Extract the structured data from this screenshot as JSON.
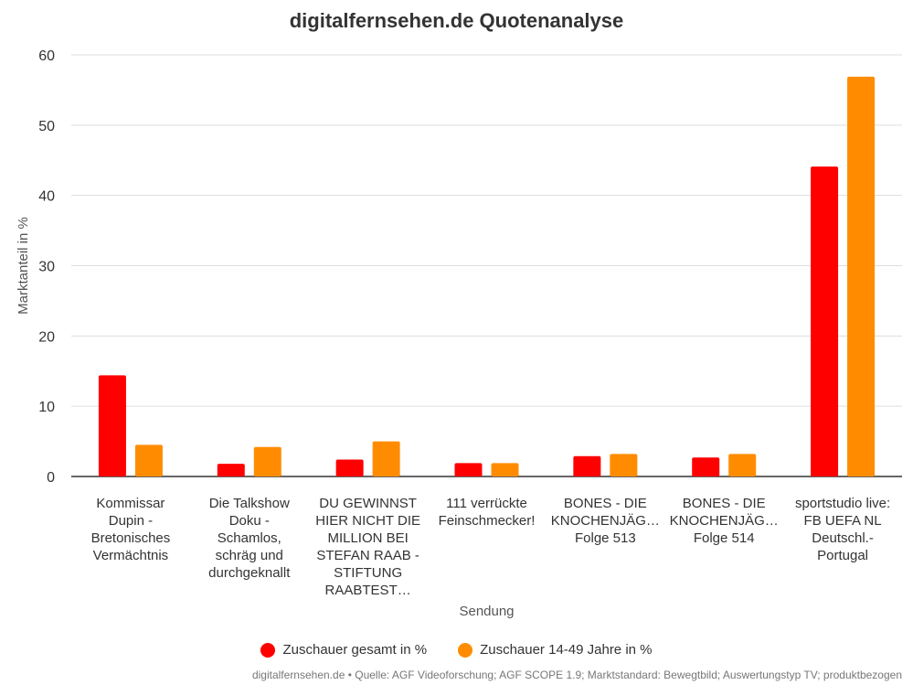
{
  "chart_data": {
    "type": "bar",
    "title": "digitalfernsehen.de Quotenanalyse",
    "xlabel": "Sendung",
    "ylabel": "Marktanteil in %",
    "ylim": [
      0,
      60
    ],
    "yticks": [
      0,
      10,
      20,
      30,
      40,
      50,
      60
    ],
    "grid": true,
    "legend_position": "bottom",
    "categories": [
      [
        "Kommissar",
        "Dupin -",
        "Bretonisches",
        "Vermächtnis"
      ],
      [
        "Die Talkshow",
        "Doku -",
        "Schamlos,",
        "schräg und",
        "durchgeknallt"
      ],
      [
        "DU GEWINNST",
        "HIER NICHT DIE",
        "MILLION BEI",
        "STEFAN RAAB -",
        "STIFTUNG",
        "RAABTEST…"
      ],
      [
        "111 verrückte",
        "Feinschmecker!"
      ],
      [
        "BONES - DIE",
        "KNOCHENJÄG…",
        "Folge 513"
      ],
      [
        "BONES - DIE",
        "KNOCHENJÄG…",
        "Folge 514"
      ],
      [
        "sportstudio live:",
        "FB UEFA NL",
        "Deutschl.-",
        "Portugal"
      ]
    ],
    "series": [
      {
        "name": "Zuschauer gesamt in %",
        "color": "#ff0000",
        "values": [
          14.4,
          1.8,
          2.4,
          1.9,
          2.9,
          2.7,
          44.1
        ]
      },
      {
        "name": "Zuschauer 14-49 Jahre in %",
        "color": "#ff8c00",
        "values": [
          4.5,
          4.2,
          5.0,
          1.9,
          3.2,
          3.2,
          56.9
        ]
      }
    ]
  },
  "source_note": "digitalfernsehen.de • Quelle: AGF Videoforschung; AGF SCOPE 1.9; Marktstandard: Bewegtbild; Auswertungstyp TV; produktbezogen"
}
